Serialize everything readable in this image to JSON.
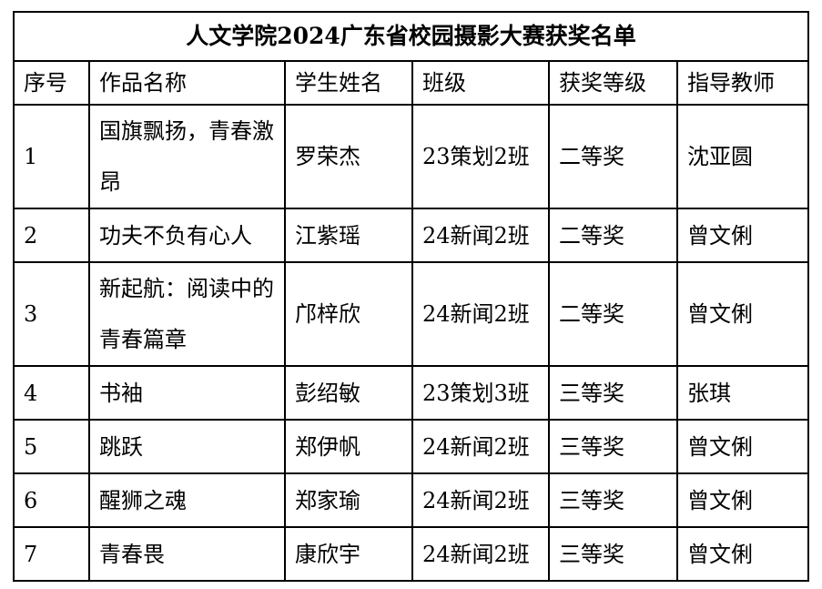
{
  "document": {
    "title": "人文学院2024广东省校园摄影大赛获奖名单"
  },
  "table": {
    "headers": [
      "序号",
      "作品名称",
      "学生姓名",
      "班级",
      "获奖等级",
      "指导教师"
    ],
    "rows": [
      [
        "1",
        "国旗飘扬，青春激昂",
        "罗荣杰",
        "23策划2班",
        "二等奖",
        "沈亚圆"
      ],
      [
        "2",
        "功夫不负有心人",
        "江紫瑶",
        "24新闻2班",
        "二等奖",
        "曾文俐"
      ],
      [
        "3",
        "新起航：阅读中的青春篇章",
        "邝梓欣",
        "24新闻2班",
        "二等奖",
        "曾文俐"
      ],
      [
        "4",
        "书袖",
        "彭绍敏",
        "23策划3班",
        "三等奖",
        "张琪"
      ],
      [
        "5",
        "跳跃",
        "郑伊帆",
        "24新闻2班",
        "三等奖",
        "曾文俐"
      ],
      [
        "6",
        "醒狮之魂",
        "郑家瑜",
        "24新闻2班",
        "三等奖",
        "曾文俐"
      ],
      [
        "7",
        "青春畏",
        "康欣宇",
        "24新闻2班",
        "三等奖",
        "曾文俐"
      ]
    ]
  },
  "colors": {
    "border": "#000000",
    "text": "#000000",
    "background": "#ffffff"
  }
}
